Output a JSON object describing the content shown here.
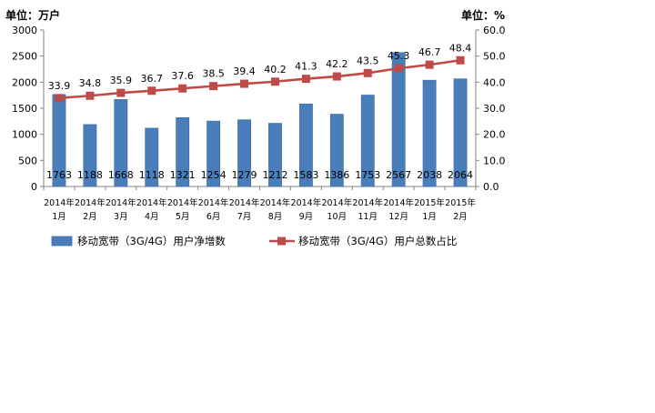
{
  "chart_data": {
    "type": "bar+line",
    "left_axis_unit": "单位：万户",
    "right_axis_unit": "单位：%",
    "left_ylim": [
      0,
      3000
    ],
    "left_ticks": [
      "0",
      "500",
      "1000",
      "1500",
      "2000",
      "2500",
      "3000"
    ],
    "right_ylim": [
      0,
      60
    ],
    "right_ticks": [
      "0.0",
      "10.0",
      "20.0",
      "30.0",
      "40.0",
      "50.0",
      "60.0"
    ],
    "categories": [
      [
        "2014年",
        "1月"
      ],
      [
        "2014年",
        "2月"
      ],
      [
        "2014年",
        "3月"
      ],
      [
        "2014年",
        "4月"
      ],
      [
        "2014年",
        "5月"
      ],
      [
        "2014年",
        "6月"
      ],
      [
        "2014年",
        "7月"
      ],
      [
        "2014年",
        "8月"
      ],
      [
        "2014年",
        "9月"
      ],
      [
        "2014年",
        "10月"
      ],
      [
        "2014年",
        "11月"
      ],
      [
        "2014年",
        "12月"
      ],
      [
        "2015年",
        "1月"
      ],
      [
        "2015年",
        "2月"
      ]
    ],
    "series": [
      {
        "name": "移动宽带（3G/4G）用户净增数",
        "type": "bar",
        "axis": "left",
        "color": "#4a7ebb",
        "values": [
          1763,
          1188,
          1668,
          1118,
          1321,
          1254,
          1279,
          1212,
          1583,
          1386,
          1753,
          2567,
          2038,
          2064
        ],
        "labels": [
          "1763",
          "1188",
          "1668",
          "1118",
          "1321",
          "1254",
          "1279",
          "1212",
          "1583",
          "1386",
          "1753",
          "2567",
          "2038",
          "2064"
        ]
      },
      {
        "name": "移动宽带（3G/4G）用户总数占比",
        "type": "line",
        "axis": "right",
        "color": "#be4b48",
        "values": [
          33.9,
          34.8,
          35.9,
          36.7,
          37.6,
          38.5,
          39.4,
          40.2,
          41.3,
          42.2,
          43.5,
          45.3,
          46.7,
          48.4
        ],
        "labels": [
          "33.9",
          "34.8",
          "35.9",
          "36.7",
          "37.6",
          "38.5",
          "39.4",
          "40.2",
          "41.3",
          "42.2",
          "43.5",
          "45.3",
          "46.7",
          "48.4"
        ]
      }
    ],
    "grid": false,
    "legend_position": "bottom"
  }
}
